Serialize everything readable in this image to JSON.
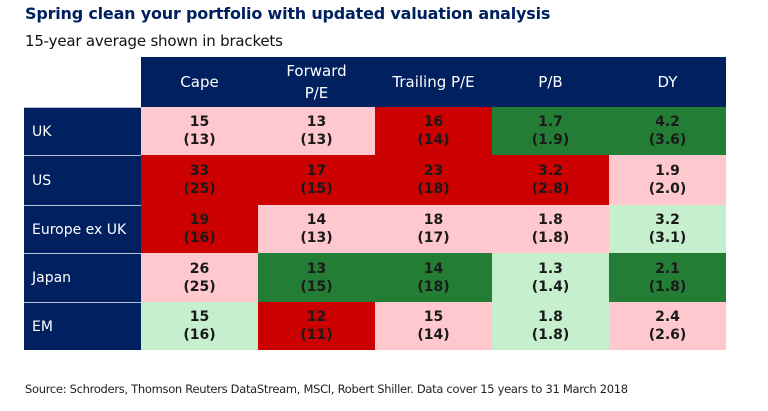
{
  "title": "Spring clean your portfolio with updated valuation analysis",
  "subtitle": "15-year average shown in brackets",
  "source": "Source: Schroders, Thomson Reuters DataStream, MSCI, Robert Shiller. Data cover 15 years to 31 March 2018",
  "colors": {
    "header": "#002060",
    "dark_red": "#cc0000",
    "pink": "#ffc7ce",
    "dark_green": "#237d34",
    "light_green": "#c6efce"
  },
  "chart_data": {
    "type": "table",
    "title": "Spring clean your portfolio with updated valuation analysis",
    "subtitle": "15-year average shown in brackets",
    "columns": [
      "Cape",
      "Forward P/E",
      "Trailing P/E",
      "P/B",
      "DY"
    ],
    "rows": [
      {
        "label": "UK",
        "values": [
          "15",
          "13",
          "16",
          "1.7",
          "4.2"
        ],
        "averages": [
          "(13)",
          "(13)",
          "(14)",
          "(1.9)",
          "(3.6)"
        ],
        "shading": [
          "pink",
          "pink",
          "dark_red",
          "dark_green",
          "dark_green"
        ]
      },
      {
        "label": "US",
        "values": [
          "33",
          "17",
          "23",
          "3.2",
          "1.9"
        ],
        "averages": [
          "(25)",
          "(15)",
          "(18)",
          "(2.8)",
          "(2.0)"
        ],
        "shading": [
          "dark_red",
          "dark_red",
          "dark_red",
          "dark_red",
          "pink"
        ]
      },
      {
        "label": "Europe ex UK",
        "values": [
          "19",
          "14",
          "18",
          "1.8",
          "3.2"
        ],
        "averages": [
          "(16)",
          "(13)",
          "(17)",
          "(1.8)",
          "(3.1)"
        ],
        "shading": [
          "dark_red",
          "pink",
          "pink",
          "pink",
          "light_green"
        ]
      },
      {
        "label": "Japan",
        "values": [
          "26",
          "13",
          "14",
          "1.3",
          "2.1"
        ],
        "averages": [
          "(25)",
          "(15)",
          "(18)",
          "(1.4)",
          "(1.8)"
        ],
        "shading": [
          "pink",
          "dark_green",
          "dark_green",
          "light_green",
          "dark_green"
        ]
      },
      {
        "label": "EM",
        "values": [
          "15",
          "12",
          "15",
          "1.8",
          "2.4"
        ],
        "averages": [
          "(16)",
          "(11)",
          "(14)",
          "(1.8)",
          "(2.6)"
        ],
        "shading": [
          "light_green",
          "dark_red",
          "pink",
          "light_green",
          "pink"
        ]
      }
    ]
  }
}
